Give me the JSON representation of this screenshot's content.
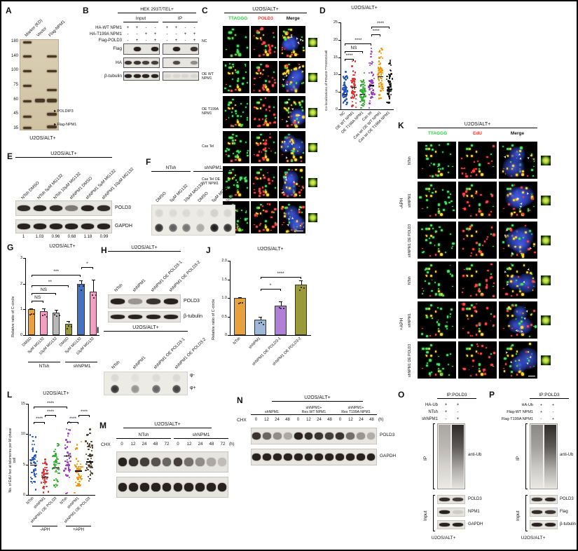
{
  "figure": {
    "cell_line": "U2OS/ALT+"
  },
  "panelA": {
    "label": "A",
    "col_labels": [
      "Marker (KD)",
      "Vector",
      "Flag-NPM1"
    ],
    "mw_markers": [
      "180",
      "140",
      "100",
      "75",
      "60",
      "45",
      "35"
    ],
    "arrow_icon": "►",
    "arrow_labels": [
      "POLDIP3",
      "Flag-NPM1"
    ],
    "footer": "U2OS/ALT+"
  },
  "panelB": {
    "label": "B",
    "title": "HEK 293T/TEL+",
    "group_labels": [
      "Input",
      "IP"
    ],
    "conditions": [
      {
        "label": "HA-WT NPM1",
        "values": [
          "+",
          "+",
          "-",
          "-",
          "+",
          "+",
          "-",
          "-"
        ]
      },
      {
        "label": "HA-T199A NPM1",
        "values": [
          "-",
          "-",
          "+",
          "+",
          "-",
          "-",
          "+",
          "+"
        ]
      },
      {
        "label": "Flag-POLD3",
        "values": [
          "-",
          "+",
          "-",
          "+",
          "-",
          "+",
          "-",
          "+"
        ]
      }
    ],
    "blots": [
      {
        "name": "Flag",
        "input": [
          0,
          1,
          0,
          1
        ],
        "ip": [
          0,
          1,
          0,
          0.9
        ]
      },
      {
        "name": "HA",
        "input": [
          0.9,
          0.9,
          0.85,
          0.85
        ],
        "ip": [
          0,
          0.8,
          0,
          0.45
        ]
      },
      {
        "name": "β-tubulin",
        "input": [
          1,
          1,
          1,
          1
        ],
        "ip": [
          0.07,
          0.07,
          0.07,
          0.07
        ]
      }
    ]
  },
  "panelC": {
    "label": "C",
    "title": "U2OS/ALT+",
    "headers": [
      "TTAGGG",
      "POLD3",
      "Merge"
    ],
    "header_colors": [
      "#2ecc40",
      "#ff3b30",
      "#111111"
    ],
    "rows": [
      "NC",
      "OE WT NPM1",
      "OE T199A NPM1",
      "Cas Tel",
      "Cas Tel OE WT NPM1",
      "Cas Tel OE T199A NPM1"
    ]
  },
  "panelD": {
    "label": "D",
    "chart_data": {
      "type": "scatter",
      "title": "U2OS/ALT+",
      "ylabel": "Co-localizations of POLD3-TTAGGG/cell",
      "ylim": [
        0,
        25
      ],
      "yticks": [
        "0",
        "5",
        "10",
        "15",
        "20",
        "25"
      ],
      "categories": [
        "NC",
        "OE WT NPM1",
        "OE T199A NPM1",
        "Cas tel",
        "Cas tel OE WT NPM1",
        "Cas tel OE T199A NPM1"
      ],
      "means": [
        4.5,
        6.5,
        4.5,
        7,
        9.5,
        6.5
      ],
      "maxes": [
        11,
        14,
        11,
        18,
        20,
        15
      ],
      "colors": [
        "#2353c4",
        "#e03030",
        "#2eb02e",
        "#9e3cc4",
        "#f59300",
        "#1a1a1a"
      ],
      "n_points": 60,
      "significance": [
        {
          "a": 0,
          "b": 1,
          "label": "****",
          "y": 0.58
        },
        {
          "a": 0,
          "b": 2,
          "label": "NS",
          "y": 0.67
        },
        {
          "a": 0,
          "b": 3,
          "label": "****",
          "y": 0.76
        },
        {
          "a": 3,
          "b": 4,
          "label": "****",
          "y": 0.86
        },
        {
          "a": 3,
          "b": 5,
          "label": "****",
          "y": 0.95
        }
      ]
    }
  },
  "panelE": {
    "label": "E",
    "title": "U2OS/ALT+",
    "lanes": [
      "NTsh DMSO",
      "NTsh 5μM MG132",
      "NTsh 10μM MG132",
      "shNPM1 DMSO",
      "shNPM1 5μM MG132",
      "shNPM1 10μM MG132"
    ],
    "blots": [
      {
        "name": "POLD3",
        "bands": [
          0.95,
          1,
          0.95,
          0.55,
          1,
          0.95
        ]
      },
      {
        "name": "GAPDH",
        "bands": [
          1,
          1,
          1,
          1,
          1,
          1
        ]
      }
    ],
    "quantification": [
      "1",
      "1.03",
      "0.96",
      "0.68",
      "1.18",
      "0.99"
    ]
  },
  "panelF": {
    "label": "F",
    "groups": [
      "NTsh",
      "shNPM1"
    ],
    "lanes": [
      "DMSO",
      "5μM MG132",
      "10μM MG132",
      "DMSO",
      "5μM MG132",
      "10μM MG132"
    ],
    "row_labels": [
      "φ-",
      "φ+"
    ],
    "dots": [
      [
        0.1,
        0.08,
        0.08,
        0.05,
        0.12,
        0.1
      ],
      [
        0.85,
        0.65,
        0.55,
        0.3,
        0.95,
        0.85
      ]
    ]
  },
  "panelG": {
    "label": "G",
    "chart_data": {
      "type": "bar",
      "title": "U2OS/ALT+",
      "ylabel": "Relative ratio of C-circle",
      "ylim": [
        0,
        3
      ],
      "yticks": [
        "0",
        "1",
        "2",
        "3"
      ],
      "categories": [
        "DMSO",
        "5μM MG132",
        "10μM MG132",
        "DMSO",
        "5μM MG132",
        "10μM MG132"
      ],
      "values": [
        1.0,
        0.92,
        0.88,
        0.45,
        2.0,
        1.7
      ],
      "errors": [
        0.05,
        0.12,
        0.1,
        0.1,
        0.12,
        0.45
      ],
      "colors": [
        "#e8a13c",
        "#f2a0c2",
        "#b9b9b9",
        "#9a9a3c",
        "#4472c4",
        "#f2a0c2"
      ],
      "group_labels": [
        "NTsh",
        "shNPM1"
      ],
      "significance": [
        {
          "a": 0,
          "b": 1,
          "label": "NS",
          "y": 0.45
        },
        {
          "a": 0,
          "b": 2,
          "label": "NS",
          "y": 0.55
        },
        {
          "a": 0,
          "b": 3,
          "label": "**",
          "y": 0.65
        },
        {
          "a": 0,
          "b": 4,
          "label": "***",
          "y": 0.78
        },
        {
          "a": 4,
          "b": 5,
          "label": "*",
          "y": 0.88
        }
      ]
    }
  },
  "panelH": {
    "label": "H",
    "title": "U2OS/ALT+",
    "lanes": [
      "NTsh",
      "shNPM1",
      "shNPM1 OE POLD3-1",
      "shNPM1 OE POLD3-2"
    ],
    "blots": [
      {
        "name": "POLD3",
        "bands": [
          1,
          0.4,
          0.9,
          1
        ]
      },
      {
        "name": "β-tubulin",
        "bands": [
          1,
          1,
          1,
          1
        ]
      }
    ]
  },
  "panelI": {
    "label": "I",
    "title": "U2OS/ALT+",
    "lanes": [
      "NTsh",
      "shNPM1",
      "shNPM1 OE POLD3-1",
      "shNPM1 OE POLD3-2"
    ],
    "row_labels": [
      "φ-",
      "φ+"
    ],
    "dots": [
      [
        0.08,
        0.05,
        0.07,
        0.08
      ],
      [
        0.85,
        0.4,
        0.62,
        0.78
      ]
    ]
  },
  "panelJ": {
    "label": "J",
    "chart_data": {
      "type": "bar",
      "title": "U2OS/ALT+",
      "ylabel": "Relative ratio of C-circle",
      "ylim": [
        0,
        2
      ],
      "yticks": [
        "0",
        "0.5",
        "1.0",
        "1.5",
        "2.0"
      ],
      "categories": [
        "NTsh",
        "shNPM1",
        "shNPM1 OE POLD3-1",
        "shNPM1 OE POLD3-2"
      ],
      "values": [
        1.0,
        0.42,
        0.8,
        1.35
      ],
      "errors": [
        0.02,
        0.08,
        0.1,
        0.12
      ],
      "colors": [
        "#e8a13c",
        "#9fb8d8",
        "#b07fd8",
        "#9a9a3c"
      ],
      "significance": [
        {
          "a": 1,
          "b": 2,
          "label": "*",
          "y": 0.62
        },
        {
          "a": 1,
          "b": 3,
          "label": "****",
          "y": 0.78
        }
      ]
    }
  },
  "panelK": {
    "label": "K",
    "title": "U2OS/ALT+",
    "headers": [
      "TTAGGG",
      "EdU",
      "Merge"
    ],
    "header_colors": [
      "#2ecc40",
      "#ff3b30",
      "#111111"
    ],
    "aph_groups": [
      "-APH",
      "+APH"
    ],
    "rows": [
      "NTsh",
      "shNPM1",
      "shNPM1 OE POLD3",
      "NTsh",
      "shNPM1",
      "shNPM1 OE POLD3"
    ]
  },
  "panelL": {
    "label": "L",
    "chart_data": {
      "type": "scatter",
      "title": "U2OS/ALT+",
      "ylabel": "No. of EdU foci at telomeres per M-phase cell",
      "ylim": [
        0,
        15
      ],
      "yticks": [
        "0",
        "5",
        "10",
        "15"
      ],
      "categories": [
        "NTsh",
        "shNPM1",
        "shNPM1 OE POLD3",
        "NTsh",
        "shNPM1",
        "shNPM1 OE POLD3"
      ],
      "group_labels": [
        "-APH",
        "+APH"
      ],
      "means": [
        5,
        3,
        4.5,
        6.5,
        4,
        5.5
      ],
      "maxes": [
        11,
        8,
        10,
        12,
        9,
        11
      ],
      "colors": [
        "#2353c4",
        "#e03030",
        "#2eb02e",
        "#9e3cc4",
        "#f59300",
        "#4a3b2a"
      ],
      "n_points": 50,
      "significance": [
        {
          "a": 0,
          "b": 1,
          "label": "****",
          "y": 0.8
        },
        {
          "a": 1,
          "b": 2,
          "label": "****",
          "y": 0.88
        },
        {
          "a": 3,
          "b": 4,
          "label": "****",
          "y": 0.8
        },
        {
          "a": 4,
          "b": 5,
          "label": "****",
          "y": 0.88
        },
        {
          "a": 0,
          "b": 3,
          "label": "****",
          "y": 0.97
        }
      ]
    }
  },
  "panelM": {
    "label": "M",
    "title": "U2OS/ALT+",
    "groups": [
      "NTsh",
      "shNPM1"
    ],
    "chx_label": "CHX",
    "timepoints": [
      "0",
      "12",
      "24",
      "48",
      "72",
      "0",
      "12",
      "24",
      "48",
      "72"
    ],
    "time_unit": "(h)",
    "blots": [
      {
        "name": "POLD3",
        "bands": [
          1,
          0.92,
          0.85,
          0.75,
          0.65,
          0.85,
          0.6,
          0.45,
          0.3,
          0.2
        ]
      },
      {
        "name": "GAPDH",
        "bands": [
          1,
          1,
          1,
          1,
          1,
          1,
          1,
          1,
          1,
          1
        ]
      }
    ]
  },
  "panelN": {
    "label": "N",
    "title": "U2OS/ALT+",
    "groups": [
      {
        "l1": "",
        "l2": "shNPM1"
      },
      {
        "l1": "shNPM1+",
        "l2": "Res WT NPM1"
      },
      {
        "l1": "shNPM1+",
        "l2": "Res T199A NPM1"
      }
    ],
    "chx_label": "CHX",
    "timepoints": [
      "0",
      "12",
      "24",
      "48",
      "0",
      "12",
      "24",
      "48",
      "0",
      "12",
      "24",
      "48"
    ],
    "time_unit": "(h)",
    "blots": [
      {
        "name": "POLD3",
        "bands": [
          0.9,
          0.65,
          0.45,
          0.3,
          1,
          0.95,
          0.9,
          0.85,
          0.9,
          0.6,
          0.4,
          0.28
        ]
      },
      {
        "name": "GAPDH",
        "bands": [
          1,
          1,
          1,
          1,
          1,
          1,
          1,
          1,
          1,
          1,
          1,
          1
        ]
      }
    ]
  },
  "panelO": {
    "label": "O",
    "ip_title": "IP:POLD3",
    "conditions": [
      {
        "label": "HA-Ub",
        "values": [
          "+",
          "+"
        ]
      },
      {
        "label": "NTsh",
        "values": [
          "+",
          "-"
        ]
      },
      {
        "label": "shNPM1",
        "values": [
          "-",
          "+"
        ]
      }
    ],
    "ip_side": "IP",
    "ip_blot": "anti-Ub",
    "ip_lanes": [
      0.35,
      0.95
    ],
    "input_side": "Input",
    "input_blots": [
      {
        "name": "POLD3",
        "bands": [
          0.95,
          0.85
        ]
      },
      {
        "name": "NPM1",
        "bands": [
          1,
          0.12
        ]
      },
      {
        "name": "GAPDH",
        "bands": [
          1,
          1
        ]
      }
    ],
    "footer": "U2OS/ALT+"
  },
  "panelP": {
    "label": "P",
    "ip_title": "IP:POLD3",
    "conditions": [
      {
        "label": "HA-Ub",
        "values": [
          "+",
          "+"
        ]
      },
      {
        "label": "Flag-WT NPM1",
        "values": [
          "+",
          "-"
        ]
      },
      {
        "label": "Flag-T199A NPM1",
        "values": [
          "-",
          "+"
        ]
      }
    ],
    "ip_side": "IP",
    "ip_blot": "anti-Ub",
    "ip_lanes": [
      0.5,
      0.95
    ],
    "input_side": "Input",
    "input_blots": [
      {
        "name": "POLD3",
        "bands": [
          0.9,
          0.95
        ]
      },
      {
        "name": "Flag",
        "bands": [
          0.95,
          0.9
        ]
      },
      {
        "name": "β-tubulin",
        "bands": [
          1,
          1
        ]
      }
    ],
    "footer": "U2OS/ALT+"
  }
}
